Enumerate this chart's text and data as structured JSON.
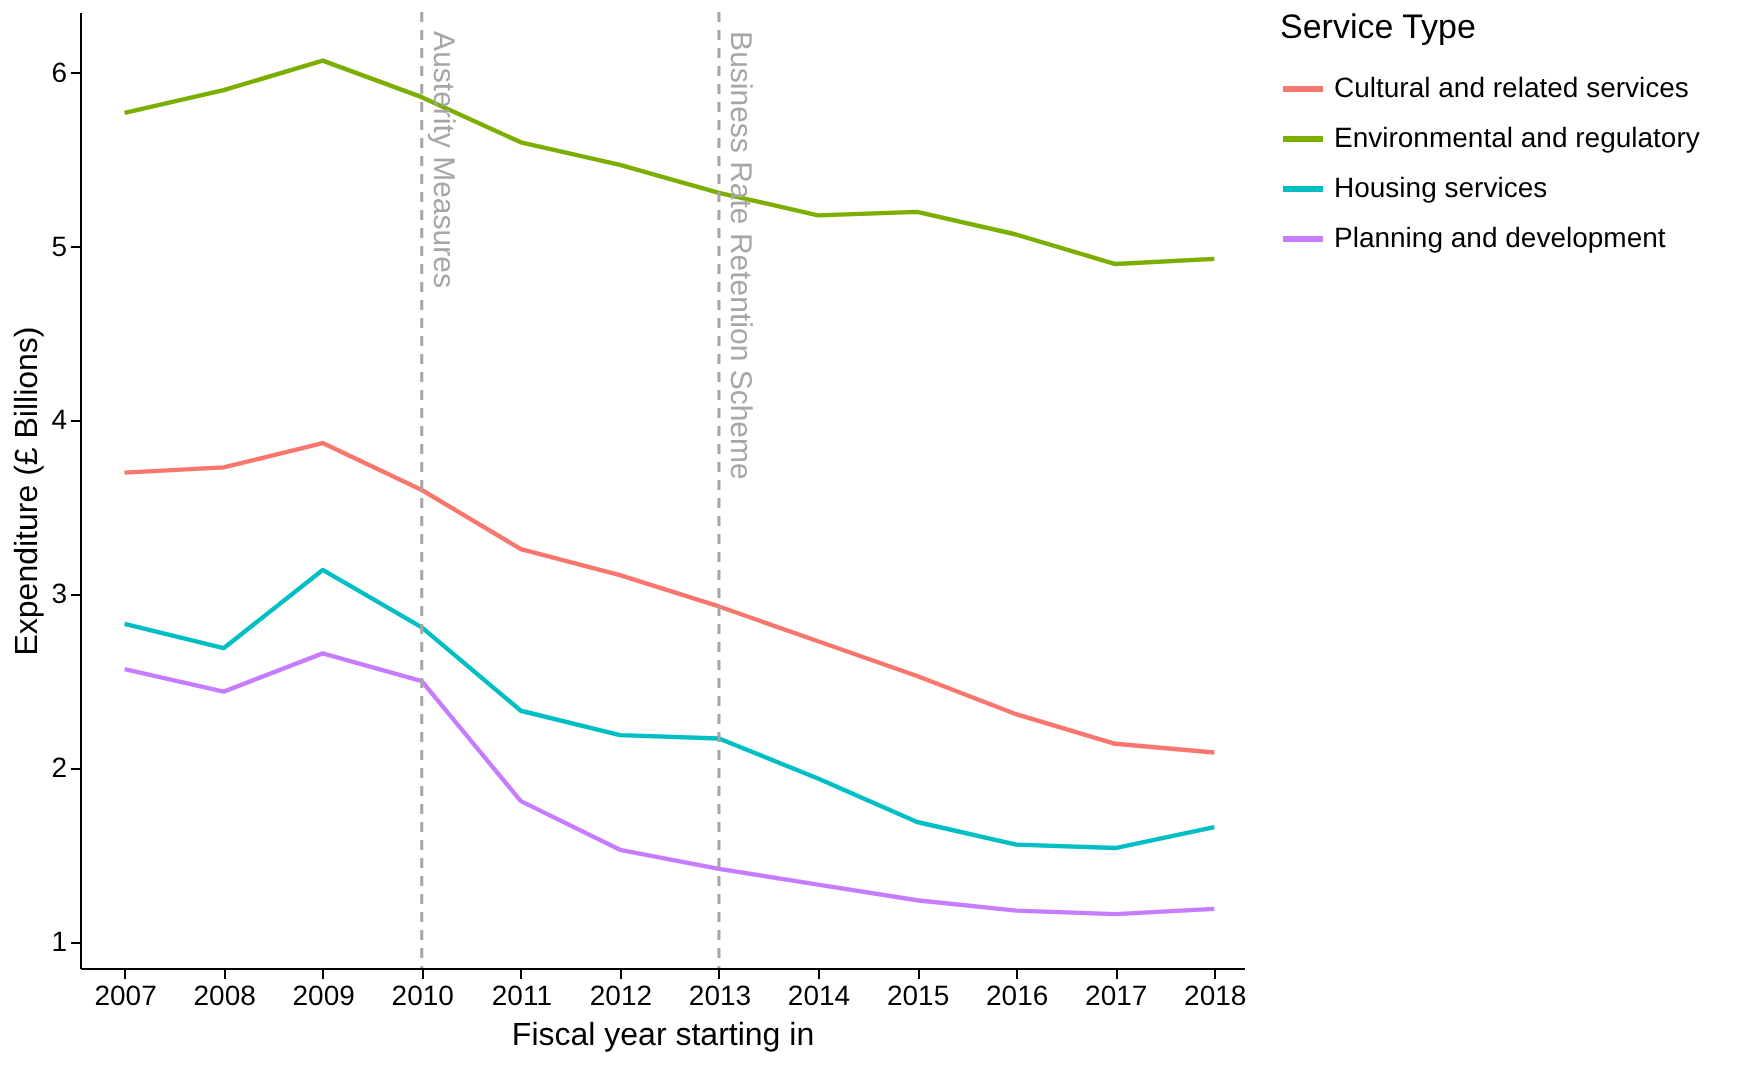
{
  "chart_data": {
    "type": "line",
    "xlabel": "Fiscal year starting in",
    "ylabel": "Expenditure (£ Billions)",
    "legend_title": "Service Type",
    "legend": "right",
    "grid": false,
    "x": [
      2007,
      2008,
      2009,
      2010,
      2011,
      2012,
      2013,
      2014,
      2015,
      2016,
      2017,
      2018
    ],
    "xlim": [
      2006.55,
      2018.3
    ],
    "xticks": [
      2007,
      2008,
      2009,
      2010,
      2011,
      2012,
      2013,
      2014,
      2015,
      2016,
      2017,
      2018
    ],
    "ylim": [
      0.85,
      6.35
    ],
    "yticks": [
      1,
      2,
      3,
      4,
      5,
      6
    ],
    "series": [
      {
        "name": "Cultural and related services",
        "color": "#f8766d",
        "values": [
          3.7,
          3.73,
          3.87,
          3.6,
          3.26,
          3.11,
          2.93,
          2.73,
          2.53,
          2.31,
          2.14,
          2.09
        ]
      },
      {
        "name": "Environmental and regulatory",
        "color": "#7cae00",
        "values": [
          5.77,
          5.9,
          6.07,
          5.86,
          5.6,
          5.47,
          5.31,
          5.18,
          5.2,
          5.07,
          4.9,
          4.93
        ]
      },
      {
        "name": "Housing services",
        "color": "#00bfc4",
        "values": [
          2.83,
          2.69,
          3.14,
          2.81,
          2.33,
          2.19,
          2.17,
          1.94,
          1.69,
          1.56,
          1.54,
          1.66
        ]
      },
      {
        "name": "Planning and development",
        "color": "#c77cff",
        "values": [
          2.57,
          2.44,
          2.66,
          2.5,
          1.81,
          1.53,
          1.42,
          1.33,
          1.24,
          1.18,
          1.16,
          1.19
        ]
      }
    ],
    "ref_lines": [
      {
        "axis": "x",
        "value": 2010,
        "label": "Austerity Measures",
        "color": "#a6a6a6",
        "line_style": "dashed"
      },
      {
        "axis": "x",
        "value": 2013,
        "label": "Business Rate Retention Scheme",
        "color": "#a6a6a6",
        "line_style": "dashed"
      }
    ]
  }
}
